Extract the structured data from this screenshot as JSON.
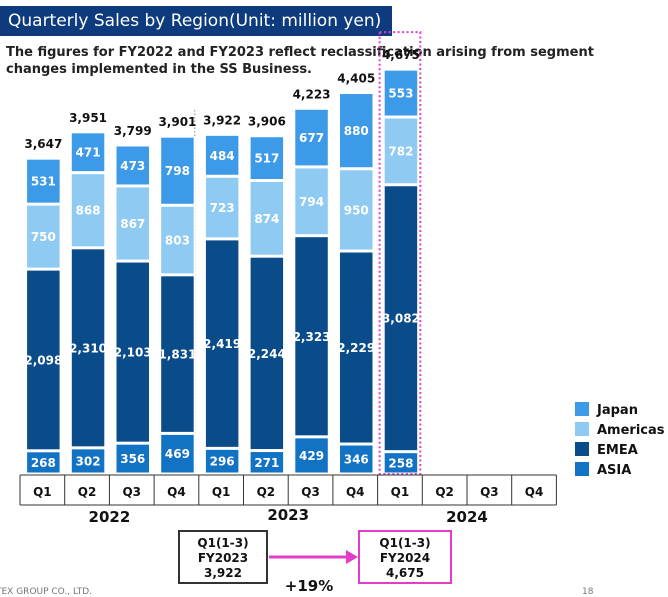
{
  "title": "Quarterly Sales by Region(Unit: million yen)",
  "note": "The figures for FY2022 and FY2023 reflect reclassification arising from segment changes implemented in the SS Business.",
  "colors": {
    "title_bg": "#0d3b7d",
    "japan": "#3d9ae8",
    "americas": "#8fcaf3",
    "emea": "#0a4c8a",
    "asia": "#1272c4",
    "highlight": "#e43cc8"
  },
  "chart_data": {
    "type": "bar",
    "stacked": true,
    "categories": [
      "Q1",
      "Q2",
      "Q3",
      "Q4",
      "Q1",
      "Q2",
      "Q3",
      "Q4",
      "Q1",
      "Q2",
      "Q3",
      "Q4"
    ],
    "years": [
      {
        "label": "2022",
        "quarters": 4
      },
      {
        "label": "2023",
        "quarters": 4
      },
      {
        "label": "2024",
        "quarters": 4
      }
    ],
    "series": [
      {
        "name": "ASIA",
        "color": "#1272c4",
        "values": [
          268,
          302,
          356,
          469,
          296,
          271,
          429,
          346,
          258,
          null,
          null,
          null
        ],
        "labels": [
          "268",
          "302",
          "356",
          "469",
          "296",
          "271",
          "429",
          "346",
          "258",
          "",
          "",
          ""
        ]
      },
      {
        "name": "EMEA",
        "color": "#0a4c8a",
        "values": [
          2098,
          2310,
          2103,
          1831,
          2419,
          2244,
          2323,
          2229,
          3082,
          null,
          null,
          null
        ],
        "labels": [
          "2,098",
          "2,310",
          "2,103",
          "1,831",
          "2,419",
          "2,244",
          "2,323",
          "2,229",
          "3,082",
          "",
          "",
          ""
        ]
      },
      {
        "name": "Americas",
        "color": "#8fcaf3",
        "values": [
          750,
          868,
          867,
          803,
          723,
          874,
          794,
          950,
          782,
          null,
          null,
          null
        ],
        "labels": [
          "750",
          "868",
          "867",
          "803",
          "723",
          "874",
          "794",
          "950",
          "782",
          "",
          "",
          ""
        ]
      },
      {
        "name": "Japan",
        "color": "#3d9ae8",
        "values": [
          531,
          471,
          473,
          798,
          484,
          517,
          677,
          880,
          553,
          null,
          null,
          null
        ],
        "labels": [
          "531",
          "471",
          "473",
          "798",
          "484",
          "517",
          "677",
          "880",
          "553",
          "",
          "",
          ""
        ]
      }
    ],
    "totals": [
      3647,
      3951,
      3799,
      3901,
      3922,
      3906,
      4223,
      4405,
      4675,
      null,
      null,
      null
    ],
    "total_labels": [
      "3,647",
      "3,951",
      "3,799",
      "3,901",
      "3,922",
      "3,906",
      "4,223",
      "4,405",
      "4,675",
      "",
      "",
      ""
    ],
    "legend": [
      "Japan",
      "Americas",
      "EMEA",
      "ASIA"
    ],
    "legend_position": "right",
    "highlight_index": 8,
    "ylim": [
      0,
      5000
    ],
    "grid": false
  },
  "comparison": {
    "left": {
      "lines": [
        "Q1(1-3)",
        "FY2023",
        "3,922"
      ]
    },
    "right": {
      "lines": [
        "Q1(1-3)",
        "FY2024",
        "4,675"
      ]
    },
    "growth": "+19%"
  },
  "footer": {
    "company": "TEX GROUP CO., LTD.",
    "page": "18"
  }
}
